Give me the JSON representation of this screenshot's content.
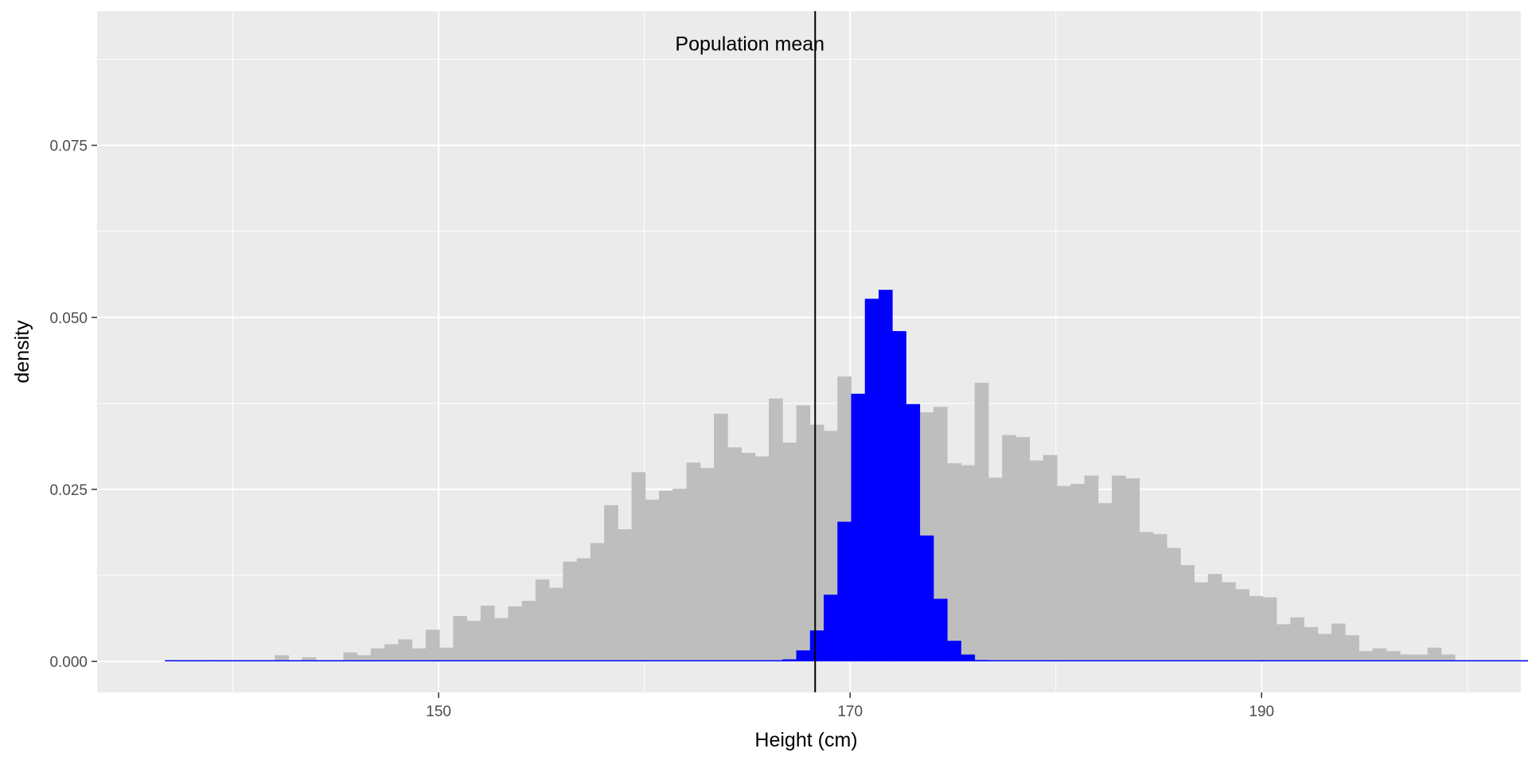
{
  "chart_data": {
    "type": "histogram",
    "xlabel": "Height (cm)",
    "ylabel": "density",
    "xlim": [
      133.4,
      202.6
    ],
    "ylim": [
      -0.0045,
      0.0945
    ],
    "x_ticks": [
      150,
      170,
      190
    ],
    "x_tick_labels": [
      "150",
      "170",
      "190"
    ],
    "y_ticks": [
      0.0,
      0.025,
      0.05,
      0.075
    ],
    "y_tick_labels": [
      "0.000",
      "0.025",
      "0.050",
      "0.075"
    ],
    "grid": true,
    "bin_width": 0.667,
    "colors": {
      "panel": "#EBEBEB",
      "grid_major": "#FFFFFF",
      "population": "#BEBEBE",
      "sample_means": "#0000FF",
      "mean_line": "#000000"
    },
    "series": [
      {
        "start": 136.7,
        "values": [
          0.0002,
          0.0,
          0.0,
          0.0002,
          0.0,
          0.0,
          0.0,
          0.0,
          0.0009,
          0.0,
          0.0006,
          0.0,
          0.0,
          0.0013,
          0.0009,
          0.0019,
          0.0025,
          0.0032,
          0.0019,
          0.0046,
          0.002,
          0.0066,
          0.0059,
          0.0081,
          0.0063,
          0.008,
          0.0088,
          0.0119,
          0.0107,
          0.0145,
          0.015,
          0.0172,
          0.0227,
          0.0192,
          0.0275,
          0.0235,
          0.0248,
          0.0251,
          0.0289,
          0.0281,
          0.036,
          0.0311,
          0.0303,
          0.0298,
          0.0382,
          0.0318,
          0.0372,
          0.0344,
          0.0335,
          0.0414,
          0.0388,
          0.0357,
          0.0352,
          0.0372,
          0.0354,
          0.0362,
          0.037,
          0.0288,
          0.0285,
          0.0405,
          0.0267,
          0.0329,
          0.0326,
          0.0292,
          0.03,
          0.0255,
          0.0258,
          0.027,
          0.023,
          0.027,
          0.0266,
          0.0188,
          0.0185,
          0.0165,
          0.014,
          0.0115,
          0.0127,
          0.0115,
          0.0105,
          0.0095,
          0.0093,
          0.0054,
          0.0064,
          0.005,
          0.004,
          0.0055,
          0.0038,
          0.0015,
          0.0019,
          0.0015,
          0.001,
          0.001,
          0.002,
          0.001,
          0.0,
          0.0,
          0.0,
          0.0,
          0.0,
          0.0002,
          0.0013,
          0.0
        ]
      },
      {
        "start": 136.7,
        "values": [
          0,
          0,
          0,
          0,
          0,
          0,
          0,
          0,
          0,
          0,
          0,
          0,
          0,
          0,
          0,
          0,
          0,
          0,
          0,
          0,
          0,
          0,
          0,
          0,
          0,
          0,
          0,
          0,
          0,
          0,
          0,
          0,
          0,
          0,
          0,
          0,
          0,
          0,
          0,
          0,
          0,
          0,
          0,
          0,
          0,
          0.0003,
          0.0016,
          0.0045,
          0.0097,
          0.0203,
          0.0389,
          0.0527,
          0.054,
          0.048,
          0.0374,
          0.0183,
          0.0091,
          0.003,
          0.001,
          0.0002,
          0,
          0,
          0,
          0,
          0,
          0,
          0,
          0,
          0,
          0,
          0,
          0,
          0,
          0,
          0,
          0,
          0,
          0,
          0,
          0,
          0,
          0,
          0,
          0,
          0,
          0,
          0,
          0,
          0,
          0,
          0,
          0,
          0,
          0,
          0,
          0,
          0,
          0,
          0,
          0,
          0,
          0
        ]
      }
    ],
    "vline": {
      "x": 168.3,
      "label": "Population mean",
      "label_y": 0.0898
    }
  }
}
